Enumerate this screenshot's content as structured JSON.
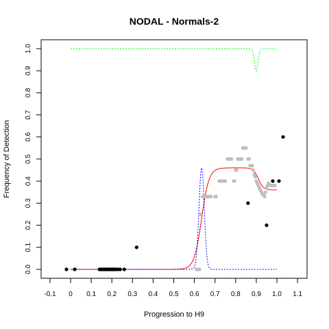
{
  "chart_data": {
    "type": "scatter",
    "title": "NODAL - Normals-2",
    "xlabel": "Progression to H9",
    "ylabel": "Frequency of Detection",
    "xlim": [
      -0.1,
      1.1
    ],
    "ylim": [
      0.0,
      1.0
    ],
    "x_ticks": [
      -0.1,
      0.0,
      0.1,
      0.2,
      0.3,
      0.4,
      0.5,
      0.6,
      0.7,
      0.8,
      0.9,
      1.0,
      1.1
    ],
    "x_tick_labels": [
      "-0.1",
      "0",
      "0.1",
      "0.2",
      "0.3",
      "0.4",
      "0.5",
      "0.6",
      "0.7",
      "0.8",
      "0.9",
      "1.0",
      "1.1"
    ],
    "y_ticks": [
      0.0,
      0.1,
      0.2,
      0.3,
      0.4,
      0.5,
      0.6,
      0.7,
      0.8,
      0.9,
      1.0
    ],
    "y_tick_labels": [
      "0.0",
      "0.1",
      "0.2",
      "0.3",
      "0.4",
      "0.5",
      "0.6",
      "0.7",
      "0.8",
      "0.9",
      "1.0"
    ],
    "colors": {
      "black_points": "#000000",
      "gray_points": "#bebebe",
      "fit_curve": "#ff0000",
      "blue_curve": "#0000ff",
      "green_curve": "#00ff00"
    },
    "black_points": [
      [
        -0.02,
        0.0
      ],
      [
        0.02,
        0.0
      ],
      [
        0.14,
        0.0
      ],
      [
        0.145,
        0.0
      ],
      [
        0.15,
        0.0
      ],
      [
        0.155,
        0.0
      ],
      [
        0.16,
        0.0
      ],
      [
        0.165,
        0.0
      ],
      [
        0.17,
        0.0
      ],
      [
        0.175,
        0.0
      ],
      [
        0.18,
        0.0
      ],
      [
        0.185,
        0.0
      ],
      [
        0.19,
        0.0
      ],
      [
        0.195,
        0.0
      ],
      [
        0.2,
        0.0
      ],
      [
        0.205,
        0.0
      ],
      [
        0.21,
        0.0
      ],
      [
        0.215,
        0.0
      ],
      [
        0.22,
        0.0
      ],
      [
        0.23,
        0.0
      ],
      [
        0.24,
        0.0
      ],
      [
        0.26,
        0.0
      ],
      [
        0.32,
        0.1
      ],
      [
        0.86,
        0.3
      ],
      [
        0.95,
        0.2
      ],
      [
        0.98,
        0.4
      ],
      [
        1.01,
        0.4
      ],
      [
        1.03,
        0.6
      ]
    ],
    "gray_points": [
      [
        0.61,
        0.0
      ],
      [
        0.615,
        0.0
      ],
      [
        0.62,
        0.0
      ],
      [
        0.625,
        0.0
      ],
      [
        0.63,
        0.25
      ],
      [
        0.64,
        0.33
      ],
      [
        0.645,
        0.33
      ],
      [
        0.65,
        0.33
      ],
      [
        0.655,
        0.33
      ],
      [
        0.66,
        0.33
      ],
      [
        0.665,
        0.33
      ],
      [
        0.67,
        0.33
      ],
      [
        0.675,
        0.33
      ],
      [
        0.68,
        0.33
      ],
      [
        0.7,
        0.33
      ],
      [
        0.705,
        0.33
      ],
      [
        0.72,
        0.4
      ],
      [
        0.725,
        0.4
      ],
      [
        0.73,
        0.4
      ],
      [
        0.735,
        0.4
      ],
      [
        0.74,
        0.4
      ],
      [
        0.745,
        0.4
      ],
      [
        0.75,
        0.4
      ],
      [
        0.76,
        0.5
      ],
      [
        0.765,
        0.5
      ],
      [
        0.77,
        0.5
      ],
      [
        0.775,
        0.5
      ],
      [
        0.78,
        0.5
      ],
      [
        0.79,
        0.4
      ],
      [
        0.795,
        0.4
      ],
      [
        0.8,
        0.45
      ],
      [
        0.805,
        0.45
      ],
      [
        0.81,
        0.5
      ],
      [
        0.815,
        0.5
      ],
      [
        0.82,
        0.5
      ],
      [
        0.825,
        0.5
      ],
      [
        0.83,
        0.5
      ],
      [
        0.835,
        0.55
      ],
      [
        0.84,
        0.55
      ],
      [
        0.845,
        0.55
      ],
      [
        0.85,
        0.55
      ],
      [
        0.86,
        0.5
      ],
      [
        0.865,
        0.5
      ],
      [
        0.87,
        0.47
      ],
      [
        0.875,
        0.47
      ],
      [
        0.88,
        0.47
      ],
      [
        0.885,
        0.45
      ],
      [
        0.89,
        0.43
      ],
      [
        0.895,
        0.42
      ],
      [
        0.9,
        0.4
      ],
      [
        0.905,
        0.39
      ],
      [
        0.91,
        0.38
      ],
      [
        0.915,
        0.37
      ],
      [
        0.92,
        0.36
      ],
      [
        0.925,
        0.35
      ],
      [
        0.93,
        0.34
      ],
      [
        0.935,
        0.34
      ],
      [
        0.94,
        0.33
      ],
      [
        0.945,
        0.35
      ],
      [
        0.95,
        0.37
      ],
      [
        0.955,
        0.38
      ],
      [
        0.96,
        0.39
      ],
      [
        0.97,
        0.38
      ],
      [
        0.975,
        0.38
      ],
      [
        0.98,
        0.38
      ],
      [
        0.985,
        0.38
      ],
      [
        0.99,
        0.38
      ]
    ],
    "fit_curve": {
      "x_range": [
        0.0,
        1.0
      ],
      "low": 0.0,
      "high": 0.46,
      "rise_center": 0.635,
      "rise_width": 0.018,
      "drop_center": 0.91,
      "drop_width": 0.012,
      "drop_level": 0.36
    },
    "blue_curve": {
      "x_range": [
        0.0,
        1.0
      ],
      "peak": 0.46,
      "center": 0.635,
      "width": 0.018
    },
    "green_curve": {
      "x_range": [
        0.0,
        1.0
      ],
      "level": 1.0,
      "dip_depth": 0.1,
      "dip_center": 0.9,
      "dip_width": 0.012
    }
  }
}
